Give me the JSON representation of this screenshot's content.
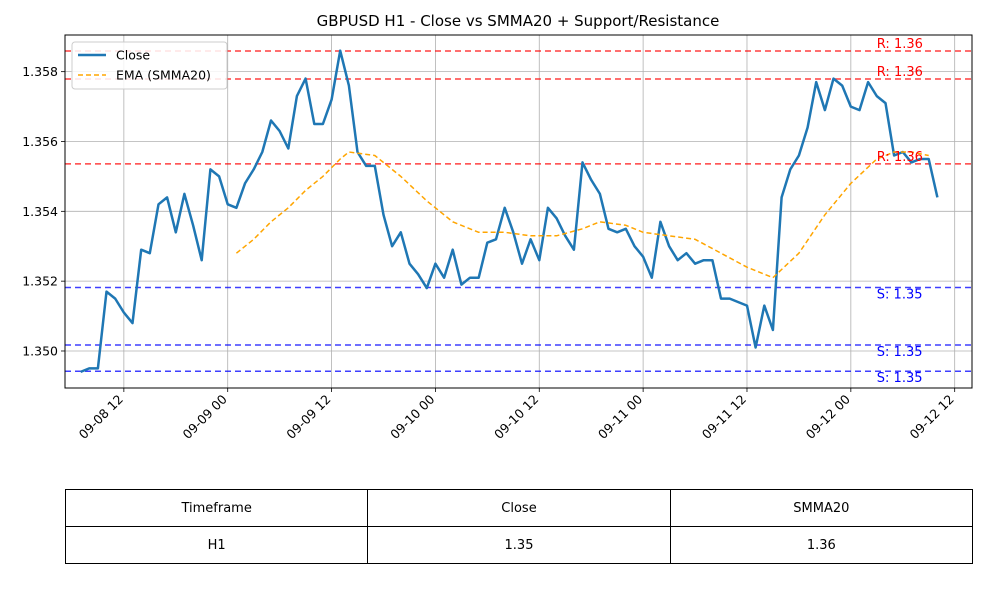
{
  "chart_data": {
    "type": "line",
    "title": "GBPUSD H1 - Close vs SMMA20 + Support/Resistance",
    "xlabel": "",
    "ylabel": "",
    "x_ticks": [
      "09-08 12",
      "09-09 00",
      "09-09 12",
      "09-10 00",
      "09-10 12",
      "09-11 00",
      "09-11 12",
      "09-12 00",
      "09-12 12"
    ],
    "y_ticks": [
      "1.350",
      "1.352",
      "1.354",
      "1.356",
      "1.358"
    ],
    "xlim": [
      "2025-09-08 05:12",
      "2025-09-12 14:00"
    ],
    "ylim": [
      1.34894,
      1.35905
    ],
    "grid": true,
    "legend_position": "top-left",
    "colors": {
      "close": "#1f77b4",
      "smma": "#ffa500",
      "resistance": "#ff0000",
      "support": "#0000ff"
    },
    "series": [
      {
        "name": "Close",
        "style": "solid",
        "points": [
          [
            "2025-09-08 07:00",
            1.3494
          ],
          [
            "2025-09-08 08:00",
            1.3495
          ],
          [
            "2025-09-08 09:00",
            1.3495
          ],
          [
            "2025-09-08 10:00",
            1.3517
          ],
          [
            "2025-09-08 11:00",
            1.3515
          ],
          [
            "2025-09-08 12:00",
            1.3511
          ],
          [
            "2025-09-08 13:00",
            1.3508
          ],
          [
            "2025-09-08 14:00",
            1.3529
          ],
          [
            "2025-09-08 15:00",
            1.3528
          ],
          [
            "2025-09-08 16:00",
            1.3542
          ],
          [
            "2025-09-08 17:00",
            1.3544
          ],
          [
            "2025-09-08 18:00",
            1.3534
          ],
          [
            "2025-09-08 19:00",
            1.3545
          ],
          [
            "2025-09-08 20:00",
            1.3536
          ],
          [
            "2025-09-08 21:00",
            1.3526
          ],
          [
            "2025-09-08 22:00",
            1.3552
          ],
          [
            "2025-09-08 23:00",
            1.355
          ],
          [
            "2025-09-09 00:00",
            1.3542
          ],
          [
            "2025-09-09 01:00",
            1.3541
          ],
          [
            "2025-09-09 02:00",
            1.3548
          ],
          [
            "2025-09-09 03:00",
            1.3552
          ],
          [
            "2025-09-09 04:00",
            1.3557
          ],
          [
            "2025-09-09 05:00",
            1.3566
          ],
          [
            "2025-09-09 06:00",
            1.3563
          ],
          [
            "2025-09-09 07:00",
            1.3558
          ],
          [
            "2025-09-09 08:00",
            1.3573
          ],
          [
            "2025-09-09 09:00",
            1.3578
          ],
          [
            "2025-09-09 10:00",
            1.3565
          ],
          [
            "2025-09-09 11:00",
            1.3565
          ],
          [
            "2025-09-09 12:00",
            1.3572
          ],
          [
            "2025-09-09 13:00",
            1.3586
          ],
          [
            "2025-09-09 14:00",
            1.3576
          ],
          [
            "2025-09-09 15:00",
            1.3557
          ],
          [
            "2025-09-09 16:00",
            1.3553
          ],
          [
            "2025-09-09 17:00",
            1.3553
          ],
          [
            "2025-09-09 18:00",
            1.3539
          ],
          [
            "2025-09-09 19:00",
            1.353
          ],
          [
            "2025-09-09 20:00",
            1.3534
          ],
          [
            "2025-09-09 21:00",
            1.3525
          ],
          [
            "2025-09-09 22:00",
            1.3522
          ],
          [
            "2025-09-09 23:00",
            1.3518
          ],
          [
            "2025-09-10 00:00",
            1.3525
          ],
          [
            "2025-09-10 01:00",
            1.3521
          ],
          [
            "2025-09-10 02:00",
            1.3529
          ],
          [
            "2025-09-10 03:00",
            1.3519
          ],
          [
            "2025-09-10 04:00",
            1.3521
          ],
          [
            "2025-09-10 05:00",
            1.3521
          ],
          [
            "2025-09-10 06:00",
            1.3531
          ],
          [
            "2025-09-10 07:00",
            1.3532
          ],
          [
            "2025-09-10 08:00",
            1.3541
          ],
          [
            "2025-09-10 09:00",
            1.3534
          ],
          [
            "2025-09-10 10:00",
            1.3525
          ],
          [
            "2025-09-10 11:00",
            1.3532
          ],
          [
            "2025-09-10 12:00",
            1.3526
          ],
          [
            "2025-09-10 13:00",
            1.3541
          ],
          [
            "2025-09-10 14:00",
            1.3538
          ],
          [
            "2025-09-10 15:00",
            1.3533
          ],
          [
            "2025-09-10 16:00",
            1.3529
          ],
          [
            "2025-09-10 17:00",
            1.3554
          ],
          [
            "2025-09-10 18:00",
            1.3549
          ],
          [
            "2025-09-10 19:00",
            1.3545
          ],
          [
            "2025-09-10 20:00",
            1.3535
          ],
          [
            "2025-09-10 21:00",
            1.3534
          ],
          [
            "2025-09-10 22:00",
            1.3535
          ],
          [
            "2025-09-10 23:00",
            1.353
          ],
          [
            "2025-09-11 00:00",
            1.3527
          ],
          [
            "2025-09-11 01:00",
            1.3521
          ],
          [
            "2025-09-11 02:00",
            1.3537
          ],
          [
            "2025-09-11 03:00",
            1.353
          ],
          [
            "2025-09-11 04:00",
            1.3526
          ],
          [
            "2025-09-11 05:00",
            1.3528
          ],
          [
            "2025-09-11 06:00",
            1.3525
          ],
          [
            "2025-09-11 07:00",
            1.3526
          ],
          [
            "2025-09-11 08:00",
            1.3526
          ],
          [
            "2025-09-11 09:00",
            1.3515
          ],
          [
            "2025-09-11 10:00",
            1.3515
          ],
          [
            "2025-09-11 11:00",
            1.3514
          ],
          [
            "2025-09-11 12:00",
            1.3513
          ],
          [
            "2025-09-11 13:00",
            1.3501
          ],
          [
            "2025-09-11 14:00",
            1.3513
          ],
          [
            "2025-09-11 15:00",
            1.3506
          ],
          [
            "2025-09-11 16:00",
            1.3544
          ],
          [
            "2025-09-11 17:00",
            1.3552
          ],
          [
            "2025-09-11 18:00",
            1.3556
          ],
          [
            "2025-09-11 19:00",
            1.3564
          ],
          [
            "2025-09-11 20:00",
            1.3577
          ],
          [
            "2025-09-11 21:00",
            1.3569
          ],
          [
            "2025-09-11 22:00",
            1.3578
          ],
          [
            "2025-09-11 23:00",
            1.3576
          ],
          [
            "2025-09-12 00:00",
            1.357
          ],
          [
            "2025-09-12 01:00",
            1.3569
          ],
          [
            "2025-09-12 02:00",
            1.3577
          ],
          [
            "2025-09-12 03:00",
            1.3573
          ],
          [
            "2025-09-12 04:00",
            1.3571
          ],
          [
            "2025-09-12 05:00",
            1.3556
          ],
          [
            "2025-09-12 06:00",
            1.3557
          ],
          [
            "2025-09-12 07:00",
            1.3554
          ],
          [
            "2025-09-12 08:00",
            1.3555
          ],
          [
            "2025-09-12 09:00",
            1.3555
          ],
          [
            "2025-09-12 10:00",
            1.3544
          ]
        ]
      },
      {
        "name": "EMA (SMMA20)",
        "style": "dashed",
        "points": [
          [
            "2025-09-09 01:00",
            1.3528
          ],
          [
            "2025-09-09 03:00",
            1.3532
          ],
          [
            "2025-09-09 05:00",
            1.3537
          ],
          [
            "2025-09-09 07:00",
            1.3541
          ],
          [
            "2025-09-09 09:00",
            1.3546
          ],
          [
            "2025-09-09 11:00",
            1.355
          ],
          [
            "2025-09-09 13:00",
            1.3555
          ],
          [
            "2025-09-09 14:00",
            1.3557
          ],
          [
            "2025-09-09 17:00",
            1.3556
          ],
          [
            "2025-09-09 20:00",
            1.355
          ],
          [
            "2025-09-09 23:00",
            1.3543
          ],
          [
            "2025-09-10 02:00",
            1.3537
          ],
          [
            "2025-09-10 05:00",
            1.3534
          ],
          [
            "2025-09-10 08:00",
            1.3534
          ],
          [
            "2025-09-10 11:00",
            1.3533
          ],
          [
            "2025-09-10 14:00",
            1.3533
          ],
          [
            "2025-09-10 17:00",
            1.3535
          ],
          [
            "2025-09-10 19:00",
            1.3537
          ],
          [
            "2025-09-10 22:00",
            1.3536
          ],
          [
            "2025-09-11 00:00",
            1.3534
          ],
          [
            "2025-09-11 03:00",
            1.3533
          ],
          [
            "2025-09-11 06:00",
            1.3532
          ],
          [
            "2025-09-11 09:00",
            1.3528
          ],
          [
            "2025-09-11 12:00",
            1.3524
          ],
          [
            "2025-09-11 15:00",
            1.3521
          ],
          [
            "2025-09-11 18:00",
            1.3528
          ],
          [
            "2025-09-11 21:00",
            1.3539
          ],
          [
            "2025-09-12 00:00",
            1.3548
          ],
          [
            "2025-09-12 03:00",
            1.3555
          ],
          [
            "2025-09-12 05:00",
            1.3557
          ],
          [
            "2025-09-12 07:00",
            1.3557
          ],
          [
            "2025-09-12 09:00",
            1.3556
          ]
        ]
      }
    ],
    "resistance_levels": [
      1.35859,
      1.35779,
      1.35536
    ],
    "support_levels": [
      1.35182,
      1.35017,
      1.34942
    ],
    "level_labels": {
      "resistance": [
        "R: 1.36",
        "R: 1.36",
        "R: 1.36"
      ],
      "support": [
        "S: 1.35",
        "S: 1.35",
        "S: 1.35"
      ]
    }
  },
  "table": {
    "headers": [
      "Timeframe",
      "Close",
      "SMMA20"
    ],
    "rows": [
      [
        "H1",
        "1.35",
        "1.36"
      ]
    ]
  }
}
